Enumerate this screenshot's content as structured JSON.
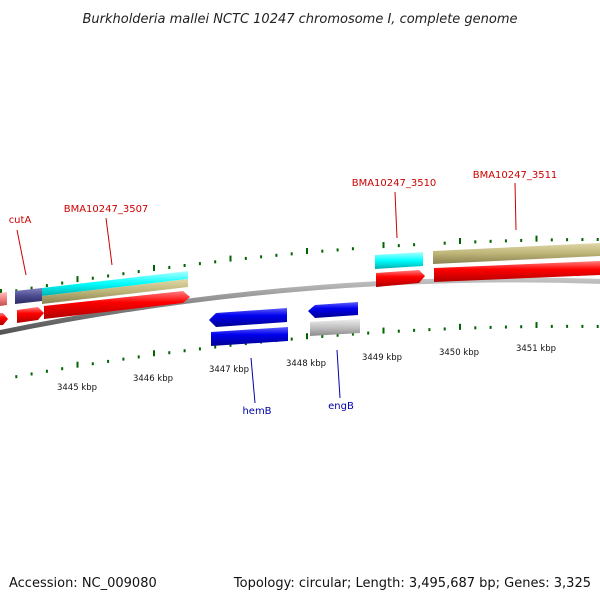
{
  "title": "Burkholderia mallei NCTC 10247 chromosome I, complete genome",
  "footer": {
    "accession": "Accession: NC_009080",
    "summary": "Topology: circular; Length: 3,495,687 bp; Genes: 3,325"
  },
  "axis_labels": [
    "3445 kbp",
    "3446 kbp",
    "3447 kbp",
    "3448 kbp",
    "3449 kbp",
    "3450 kbp",
    "3451 kbp"
  ],
  "genes_top": [
    {
      "name": "cutA",
      "color": "#cc0000"
    },
    {
      "name": "BMA10247_3507",
      "color": "#cc0000"
    },
    {
      "name": "BMA10247_3510",
      "color": "#cc0000"
    },
    {
      "name": "BMA10247_3511",
      "color": "#cc0000"
    }
  ],
  "genes_bottom": [
    {
      "name": "hemB",
      "color": "#0000aa"
    },
    {
      "name": "engB",
      "color": "#0000aa"
    }
  ],
  "colors": {
    "cds_forward": "#ff0000",
    "cds_reverse": "#0000ee",
    "cyan_feature": "#00ffff",
    "khaki_feature": "#bdb478",
    "grey_feature": "#c0c0c0",
    "purple_feature": "#4b4b8f",
    "pink_feature": "#f08080",
    "backbone": "#808080",
    "tick": "#006400"
  }
}
